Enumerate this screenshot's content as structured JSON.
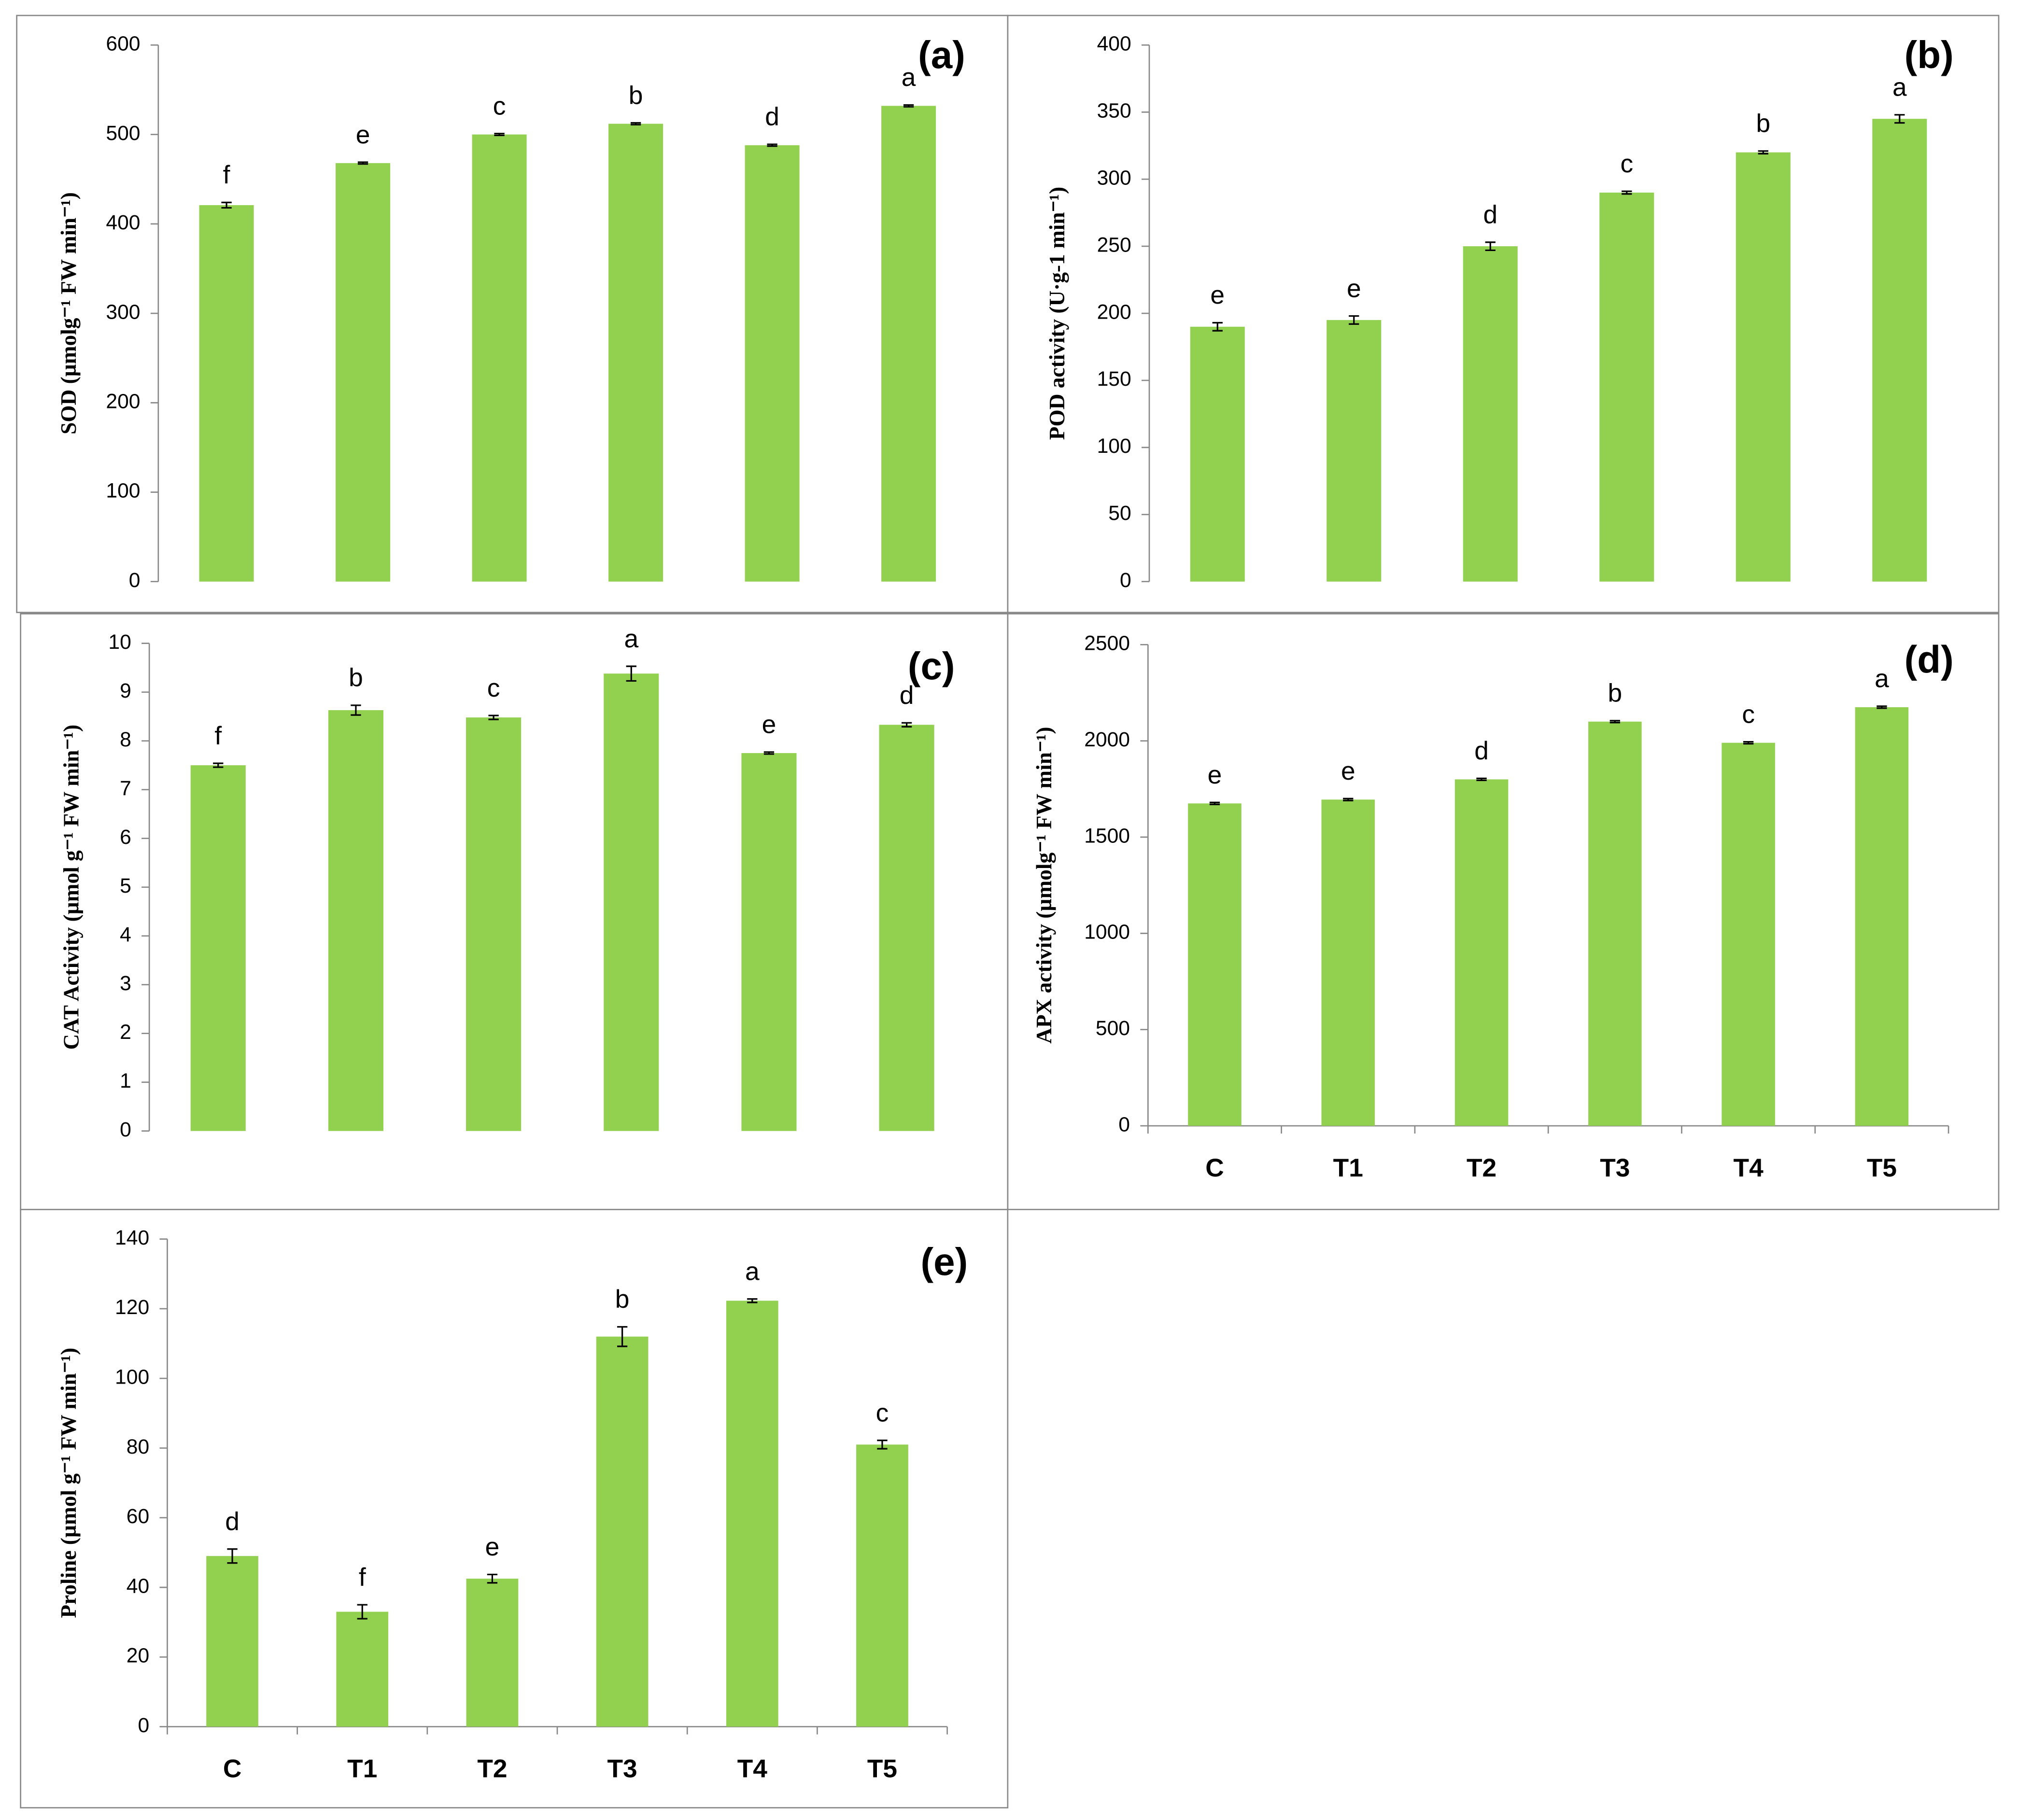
{
  "chart_data": [
    {
      "type": "bar",
      "panel_label": "(a)",
      "ylabel": "SOD (µmolg⁻¹ FW min⁻¹)",
      "color": "#92d050",
      "categories": [
        null,
        null,
        null,
        null,
        null,
        null
      ],
      "values": [
        421,
        468,
        500,
        512,
        488,
        532
      ],
      "errors": [
        3,
        1,
        1,
        1,
        1,
        1
      ],
      "annotations": [
        "f",
        "e",
        "c",
        "b",
        "d",
        "a"
      ],
      "ylim": [
        0,
        600
      ],
      "yticks": [
        0,
        100,
        200,
        300,
        400,
        500,
        600
      ]
    },
    {
      "type": "bar",
      "panel_label": "(b)",
      "ylabel": "POD activity (U·g-1 min⁻¹)",
      "color": "#92d050",
      "categories": [
        null,
        null,
        null,
        null,
        null,
        null
      ],
      "values": [
        190,
        195,
        250,
        290,
        320,
        345
      ],
      "errors": [
        3,
        3,
        3,
        1,
        1,
        3
      ],
      "annotations": [
        "e",
        "e",
        "d",
        "c",
        "b",
        "a"
      ],
      "ylim": [
        0,
        400
      ],
      "yticks": [
        0,
        50,
        100,
        150,
        200,
        250,
        300,
        350,
        400
      ]
    },
    {
      "type": "bar",
      "panel_label": "(c)",
      "ylabel": "CAT Activity (µmol g⁻¹ FW min⁻¹)",
      "color": "#92d050",
      "categories": [
        null,
        null,
        null,
        null,
        null,
        null
      ],
      "values": [
        7.5,
        8.63,
        8.48,
        9.38,
        7.75,
        8.33
      ],
      "errors": [
        0.04,
        0.1,
        0.04,
        0.15,
        0.02,
        0.04
      ],
      "annotations": [
        "f",
        "b",
        "c",
        "a",
        "e",
        "d"
      ],
      "ylim": [
        0,
        10
      ],
      "yticks": [
        0,
        1,
        2,
        3,
        4,
        5,
        6,
        7,
        8,
        9,
        10
      ]
    },
    {
      "type": "bar",
      "panel_label": "(d)",
      "ylabel": "APX activity (µmolg⁻¹ FW min⁻¹)",
      "color": "#92d050",
      "categories": [
        "C",
        "T1",
        "T2",
        "T3",
        "T4",
        "T5"
      ],
      "values": [
        1675,
        1695,
        1800,
        2100,
        1990,
        2175
      ],
      "errors": [
        5,
        5,
        5,
        5,
        5,
        5
      ],
      "annotations": [
        "e",
        "e",
        "d",
        "b",
        "c",
        "a"
      ],
      "ylim": [
        0,
        2500
      ],
      "yticks": [
        0,
        500,
        1000,
        1500,
        2000,
        2500
      ]
    },
    {
      "type": "bar",
      "panel_label": "(e)",
      "ylabel": "Proline (µmol g⁻¹ FW min⁻¹)",
      "color": "#92d050",
      "categories": [
        "C",
        "T1",
        "T2",
        "T3",
        "T4",
        "T5"
      ],
      "values": [
        49,
        33,
        42.5,
        112,
        122.3,
        81
      ],
      "errors": [
        2,
        2,
        1.2,
        2.8,
        0.5,
        1.2
      ],
      "annotations": [
        "d",
        "f",
        "e",
        "b",
        "a",
        "c"
      ],
      "ylim": [
        0,
        140
      ],
      "yticks": [
        0,
        20,
        40,
        60,
        80,
        100,
        120,
        140
      ]
    }
  ]
}
